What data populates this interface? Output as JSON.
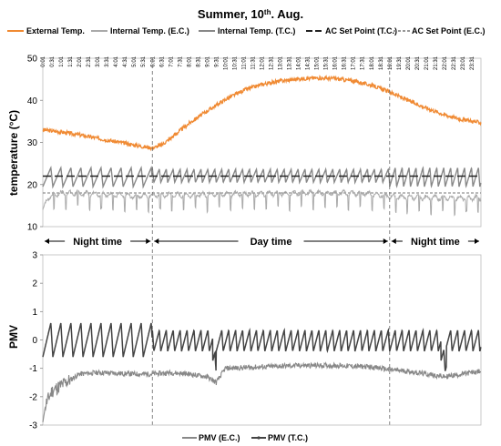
{
  "chart_data": [
    {
      "type": "line",
      "title": "Summer, 10",
      "title_sup": "th",
      "title_end": ". Aug.",
      "ylabel": "temperature (°C)",
      "xlabel": "",
      "ylim": [
        10,
        50
      ],
      "y_ticks": [
        "50",
        "40",
        "30",
        "20",
        "10"
      ],
      "x_ticks": [
        "0:01",
        "0:31",
        "1:01",
        "1:31",
        "2:01",
        "2:31",
        "3:01",
        "3:31",
        "4:01",
        "4:31",
        "5:01",
        "5:31",
        "6:01",
        "6:31",
        "7:01",
        "7:31",
        "8:01",
        "8:31",
        "9:01",
        "9:31",
        "10:01",
        "10:31",
        "11:01",
        "11:31",
        "12:01",
        "12:31",
        "13:01",
        "13:31",
        "14:01",
        "14:31",
        "15:01",
        "15:31",
        "16:01",
        "16:31",
        "17:01",
        "17:31",
        "18:01",
        "18:31",
        "19:01",
        "19:31",
        "20:01",
        "20:31",
        "21:01",
        "21:31",
        "22:01",
        "22:31",
        "23:01",
        "23:31"
      ],
      "legend_position": "top",
      "series": [
        {
          "name": "External Temp.",
          "color": "#f08a33",
          "style": "solid",
          "x": [
            0,
            1,
            2,
            3,
            4,
            5,
            5.5,
            6,
            6.5,
            7,
            8,
            9,
            10,
            11,
            12,
            13,
            14,
            15,
            16,
            17,
            18,
            19,
            20,
            21,
            22,
            23,
            24
          ],
          "y": [
            33,
            32.5,
            31.8,
            31,
            30.2,
            29.4,
            29,
            28.7,
            29.4,
            31,
            34.5,
            37.5,
            40.2,
            42.4,
            43.8,
            44.6,
            45.1,
            45.3,
            45.2,
            44.6,
            43.6,
            42,
            40,
            38.2,
            36.6,
            35.4,
            34.7
          ]
        },
        {
          "name": "Internal Temp. (E.C.)",
          "color": "#aaaaaa",
          "style": "solid",
          "x": [
            0,
            0.3,
            1,
            3,
            5,
            6,
            8,
            10,
            12,
            14,
            16,
            18,
            19,
            20,
            22,
            24
          ],
          "y": [
            14,
            17,
            18,
            17.8,
            17.2,
            17.5,
            17.5,
            17.8,
            17.8,
            18,
            18,
            17.8,
            17.2,
            17,
            16.8,
            16.8
          ]
        },
        {
          "name": "Internal Temp. (T.C.)",
          "color": "#888888",
          "style": "solid",
          "x": [
            0,
            24
          ],
          "y": [
            22,
            22
          ]
        },
        {
          "name": "AC Set Point (T.C.)",
          "color": "#222222",
          "style": "dash",
          "x": [
            0,
            24
          ],
          "y": [
            22,
            22
          ]
        },
        {
          "name": "AC Set Point (E.C.)",
          "color": "#777777",
          "style": "dot",
          "x": [
            0,
            24
          ],
          "y": [
            18,
            18
          ]
        }
      ]
    },
    {
      "type": "line",
      "title": "",
      "ylabel": "PMV",
      "xlabel": "",
      "ylim": [
        -3,
        3
      ],
      "y_ticks": [
        "3",
        "2",
        "1",
        "0",
        "-1",
        "-2",
        "-3"
      ],
      "legend_position": "bottom",
      "series": [
        {
          "name": "PMV (E.C.)",
          "color": "#888888",
          "x": [
            0,
            0.5,
            1,
            2,
            3,
            5,
            6,
            7,
            8,
            9,
            9.5,
            10,
            12,
            14,
            16,
            18,
            19,
            20,
            21,
            22,
            23,
            24
          ],
          "y": [
            -2.5,
            -1.8,
            -1.6,
            -1.2,
            -1.15,
            -1.2,
            -1.2,
            -1.15,
            -1.2,
            -1.3,
            -1.5,
            -1,
            -0.95,
            -0.9,
            -0.9,
            -0.95,
            -1.05,
            -1.1,
            -1.2,
            -1.3,
            -1.2,
            -1.1
          ]
        },
        {
          "name": "PMV (T.C.)",
          "color": "#444444",
          "x": [
            0,
            24
          ],
          "y": [
            0.1,
            0.1
          ]
        }
      ]
    }
  ],
  "periods": [
    {
      "label": "Night time",
      "from": 0,
      "to": 6
    },
    {
      "label": "Day time",
      "from": 6,
      "to": 19
    },
    {
      "label": "Night time",
      "from": 19,
      "to": 24
    }
  ]
}
